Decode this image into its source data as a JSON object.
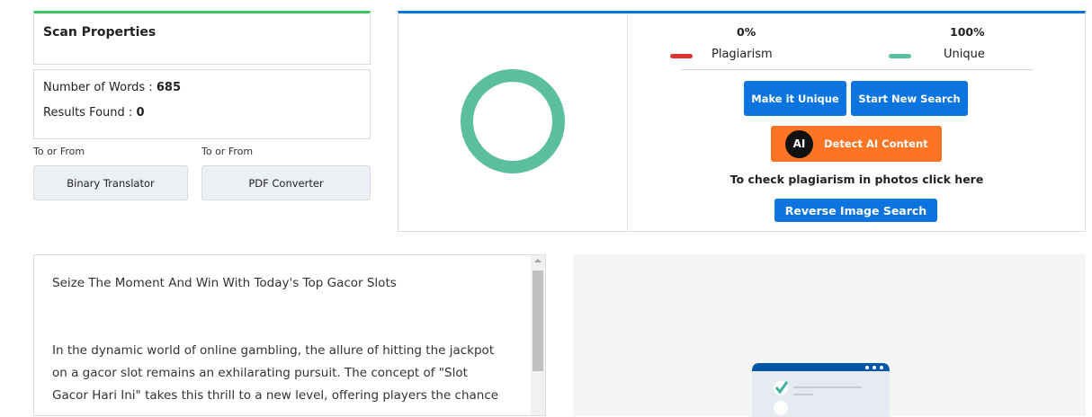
{
  "scan_properties": {
    "title": "Scan Properties",
    "words_label": "Number of Words :",
    "words": "685",
    "results_label": "Results Found :",
    "results": "0"
  },
  "tools": [
    {
      "caption": "To or From",
      "label": "Binary Translator"
    },
    {
      "caption": "To or From",
      "label": "PDF Converter"
    }
  ],
  "result": {
    "plagiarism_pct": "0%",
    "unique_pct": "100%",
    "plagiarism_label": "Plagiarism",
    "unique_label": "Unique",
    "plagiarism_value": 0,
    "unique_value": 100,
    "colors": {
      "plagiarism": "#dc3232",
      "unique": "#5bbf9c",
      "primary": "#0b74de",
      "ai": "#fd7524"
    },
    "make_unique": "Make it Unique",
    "new_search": "Start New Search",
    "ai_icon": "AI",
    "detect_ai": "Detect AI Content",
    "photos_text": "To check plagiarism in photos click here",
    "reverse_image": "Reverse Image Search"
  },
  "content": {
    "title": "Seize The Moment And Win With Today's Top Gacor Slots",
    "lines": [
      "In the dynamic world of online gambling, the allure of hitting the jackpot",
      "on a gacor slot remains an exhilarating pursuit. The concept of \"Slot",
      "Gacor Hari Ini\" takes this thrill to a new level, offering players the chance"
    ]
  }
}
